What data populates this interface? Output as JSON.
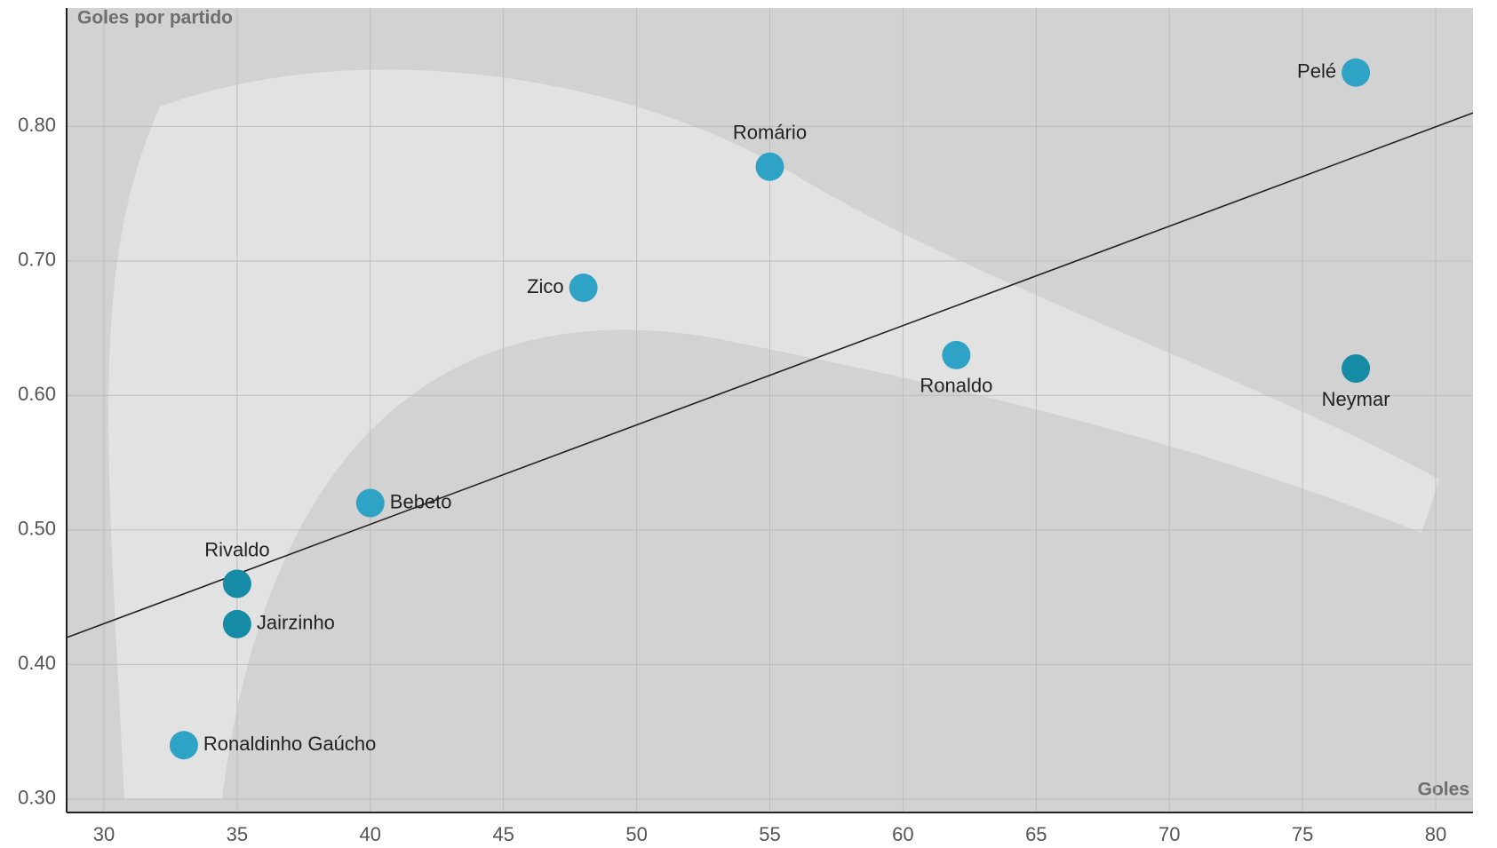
{
  "chart_data": {
    "type": "scatter",
    "x_label": "Goles",
    "y_label": "Goles por partido",
    "labels": [
      "Pelé",
      "Romário",
      "Zico",
      "Ronaldo",
      "Neymar",
      "Bebeto",
      "Rivaldo",
      "Jairzinho",
      "Ronaldinho Gaúcho"
    ],
    "x": [
      77,
      55,
      48,
      62,
      77,
      40,
      35,
      35,
      33
    ],
    "y": [
      0.84,
      0.77,
      0.68,
      0.63,
      0.62,
      0.52,
      0.46,
      0.43,
      0.34
    ],
    "colors": [
      "#2fa3c6",
      "#2fa3c6",
      "#2fa3c6",
      "#2fa3c6",
      "#158ba6",
      "#2fa3c6",
      "#158ba6",
      "#158ba6",
      "#2fa3c6"
    ],
    "trendline": {
      "x": [
        28.6,
        81.4
      ],
      "y": [
        0.42,
        0.81
      ]
    },
    "xlim": [
      28.6,
      81.4
    ],
    "ylim": [
      0.29,
      0.888
    ],
    "xticks": [
      30,
      35,
      40,
      45,
      50,
      55,
      60,
      65,
      70,
      75,
      80
    ],
    "yticks": [
      {
        "value": 0.3,
        "label": "0.30"
      },
      {
        "value": 0.4,
        "label": "0.40"
      },
      {
        "value": 0.5,
        "label": "0.50"
      },
      {
        "value": 0.6,
        "label": "0.60"
      },
      {
        "value": 0.7,
        "label": "0.70"
      },
      {
        "value": 0.8,
        "label": "0.80"
      }
    ],
    "grid": true
  }
}
